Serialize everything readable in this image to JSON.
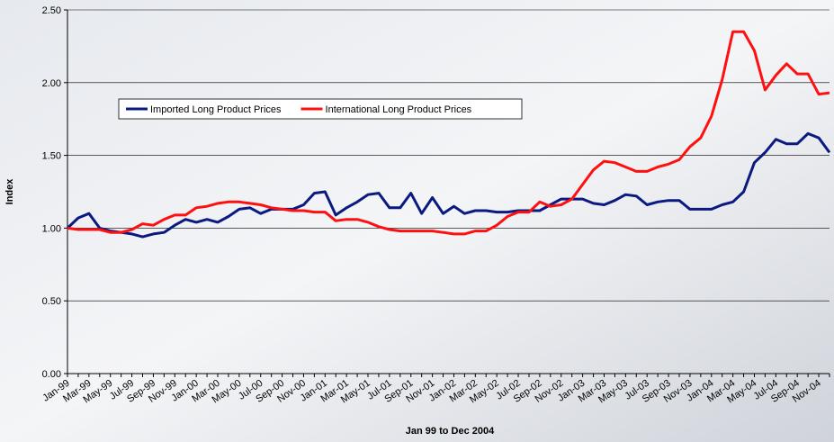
{
  "chart_data": {
    "type": "line",
    "x_label": "Jan 99 to Dec 2004",
    "y_label": "Index",
    "categories": [
      "Jan-99",
      null,
      "Mar-99",
      null,
      "May-99",
      null,
      "Jul-99",
      null,
      "Sep-99",
      null,
      "Nov-99",
      null,
      "Jan-00",
      null,
      "Mar-00",
      null,
      "May-00",
      null,
      "Jul-00",
      null,
      "Sep-00",
      null,
      "Nov-00",
      null,
      "Jan-01",
      null,
      "Mar-01",
      null,
      "May-01",
      null,
      "Jul-01",
      null,
      "Sep-01",
      null,
      "Nov-01",
      null,
      "Jan-02",
      null,
      "Mar-02",
      null,
      "May-02",
      null,
      "Jul-02",
      null,
      "Sep-02",
      null,
      "Nov-02",
      null,
      "Jan-03",
      null,
      "Mar-03",
      null,
      "May-03",
      null,
      "Jul-03",
      null,
      "Sep-03",
      null,
      "Nov-03",
      null,
      "Jan-04",
      null,
      "Mar-04",
      null,
      "May-04",
      null,
      "Jul-04",
      null,
      "Sep-04",
      null,
      "Nov-04",
      null
    ],
    "series": [
      {
        "name": "Imported Long Product Prices",
        "color": "#0a1a80",
        "values": [
          1.0,
          1.07,
          1.1,
          1.0,
          0.98,
          0.97,
          0.96,
          0.94,
          0.96,
          0.97,
          1.02,
          1.06,
          1.04,
          1.06,
          1.04,
          1.08,
          1.13,
          1.14,
          1.1,
          1.13,
          1.13,
          1.13,
          1.16,
          1.24,
          1.25,
          1.09,
          1.14,
          1.18,
          1.23,
          1.24,
          1.14,
          1.14,
          1.24,
          1.1,
          1.21,
          1.1,
          1.15,
          1.1,
          1.12,
          1.12,
          1.11,
          1.11,
          1.12,
          1.12,
          1.12,
          1.16,
          1.2,
          1.2,
          1.2,
          1.17,
          1.16,
          1.19,
          1.23,
          1.22,
          1.16,
          1.18,
          1.19,
          1.19,
          1.13,
          1.13,
          1.13,
          1.16,
          1.18,
          1.25,
          1.45,
          1.52,
          1.61,
          1.58,
          1.58,
          1.65,
          1.62,
          1.52
        ]
      },
      {
        "name": "International Long Product Prices",
        "color": "#ff1010",
        "values": [
          1.0,
          0.99,
          0.99,
          0.99,
          0.97,
          0.97,
          0.99,
          1.03,
          1.02,
          1.06,
          1.09,
          1.09,
          1.14,
          1.15,
          1.17,
          1.18,
          1.18,
          1.17,
          1.16,
          1.14,
          1.13,
          1.12,
          1.12,
          1.11,
          1.11,
          1.05,
          1.06,
          1.06,
          1.04,
          1.01,
          0.99,
          0.98,
          0.98,
          0.98,
          0.98,
          0.97,
          0.96,
          0.96,
          0.98,
          0.98,
          1.02,
          1.08,
          1.11,
          1.11,
          1.18,
          1.15,
          1.16,
          1.2,
          1.3,
          1.4,
          1.46,
          1.45,
          1.42,
          1.39,
          1.39,
          1.42,
          1.44,
          1.47,
          1.56,
          1.62,
          1.77,
          2.02,
          2.35,
          2.35,
          2.22,
          1.95,
          2.05,
          2.13,
          2.06,
          2.06,
          1.92,
          1.93
        ]
      }
    ],
    "ylim": [
      0,
      2.5
    ],
    "yticks": [
      {
        "value": 0,
        "label": "0.00"
      },
      {
        "value": 0.5,
        "label": "0.50"
      },
      {
        "value": 1,
        "label": "1.00"
      },
      {
        "value": 1.5,
        "label": "1.50"
      },
      {
        "value": 2,
        "label": "2.00"
      },
      {
        "value": 2.5,
        "label": "2.50"
      }
    ],
    "grid": true
  }
}
